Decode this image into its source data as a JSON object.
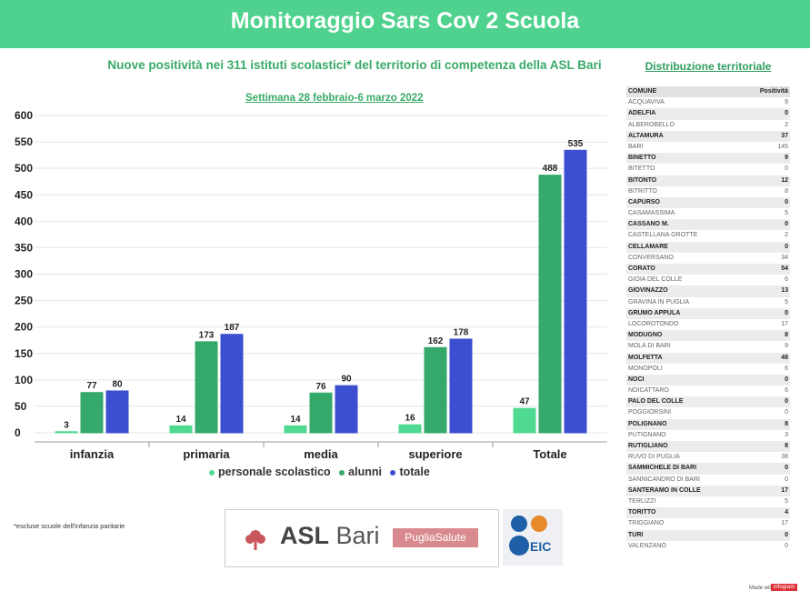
{
  "header": {
    "title": "Monitoraggio Sars Cov 2 Scuola"
  },
  "subtitle": "Nuove positività nei 311 istituti scolastici* del territorio di competenza della ASL Bari",
  "week_label": "Settimana 28 febbraio-6 marzo 2022",
  "footnote": "*escluse scuole dell'infanzia paritarie",
  "colors": {
    "personale": "#4fd991",
    "alunni": "#35a86b",
    "totale": "#3b4fd0",
    "header": "#4fd28e"
  },
  "chart_data": {
    "type": "bar",
    "categories": [
      "infanzia",
      "primaria",
      "media",
      "superiore",
      "Totale"
    ],
    "series": [
      {
        "name": "personale scolastico",
        "values": [
          3,
          14,
          14,
          16,
          47
        ]
      },
      {
        "name": "alunni",
        "values": [
          77,
          173,
          76,
          162,
          488
        ]
      },
      {
        "name": "totale",
        "values": [
          80,
          187,
          90,
          178,
          535
        ]
      }
    ],
    "ylim": [
      0,
      600
    ],
    "yticks": [
      0,
      50,
      100,
      150,
      200,
      250,
      300,
      350,
      400,
      450,
      500,
      550,
      600
    ],
    "legend": "bottom",
    "grid": true
  },
  "logos": {
    "asl_prefix": "ASL",
    "asl_name": "Bari",
    "puglia": "PugliaSalute",
    "eic": "EIC"
  },
  "distribution": {
    "title": "Distribuzione territoriale",
    "headers": [
      "COMUNE",
      "Positività"
    ],
    "rows": [
      [
        "ACQUAVIVA",
        "9"
      ],
      [
        "ADELFIA",
        "0"
      ],
      [
        "ALBEROBELLO",
        "2"
      ],
      [
        "ALTAMURA",
        "37"
      ],
      [
        "BARI",
        "145"
      ],
      [
        "BINETTO",
        "9"
      ],
      [
        "BITETTO",
        "0"
      ],
      [
        "BITONTO",
        "12"
      ],
      [
        "BITRITTO",
        "8"
      ],
      [
        "CAPURSO",
        "0"
      ],
      [
        "CASAMASSIMA",
        "5"
      ],
      [
        "CASSANO M.",
        "0"
      ],
      [
        "CASTELLANA GROTTE",
        "2"
      ],
      [
        "CELLAMARE",
        "0"
      ],
      [
        "CONVERSANO",
        "34"
      ],
      [
        "CORATO",
        "54"
      ],
      [
        "GIOIA DEL COLLE",
        "6"
      ],
      [
        "GIOVINAZZO",
        "13"
      ],
      [
        "GRAVINA IN PUGLIA",
        "5"
      ],
      [
        "GRUMO APPULA",
        "0"
      ],
      [
        "LOCOROTONDO",
        "17"
      ],
      [
        "MODUGNO",
        "8"
      ],
      [
        "MOLA DI BARI",
        "9"
      ],
      [
        "MOLFETTA",
        "48"
      ],
      [
        "MONOPOLI",
        "6"
      ],
      [
        "NOCI",
        "0"
      ],
      [
        "NOICATTARO",
        "6"
      ],
      [
        "PALO DEL COLLE",
        "0"
      ],
      [
        "POGGIORSINI",
        "0"
      ],
      [
        "POLIGNANO",
        "8"
      ],
      [
        "PUTIGNANO",
        "3"
      ],
      [
        "RUTIGLIANO",
        "8"
      ],
      [
        "RUVO DI PUGLIA",
        "38"
      ],
      [
        "SAMMICHELE DI BARI",
        "0"
      ],
      [
        "SANNICANDRO DI BARI",
        "0"
      ],
      [
        "SANTERAMO IN COLLE",
        "17"
      ],
      [
        "TERLIZZI",
        "5"
      ],
      [
        "TORITTO",
        "4"
      ],
      [
        "TRIGGIANO",
        "17"
      ],
      [
        "TURI",
        "0"
      ],
      [
        "VALENZANO",
        "0"
      ]
    ]
  },
  "footer": {
    "made_with": "Made with",
    "brand": "infogram"
  }
}
